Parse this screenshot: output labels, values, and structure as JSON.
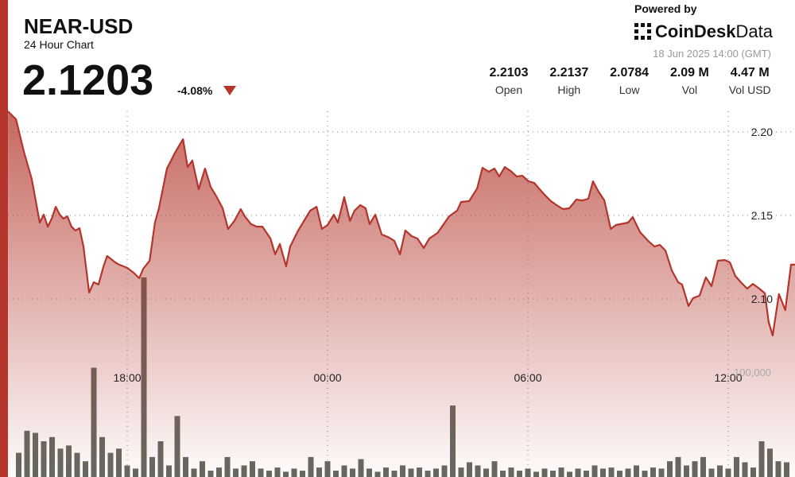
{
  "header": {
    "symbol": "NEAR-USD",
    "subtitle": "24 Hour Chart",
    "price": "2.1203",
    "change": "-4.08%",
    "powered_by": "Powered by",
    "brand": "CoinDesk",
    "brand_suffix": "Data",
    "timestamp": "18 Jun 2025 14:00 (GMT)",
    "stats": [
      {
        "value": "2.2103",
        "label": "Open"
      },
      {
        "value": "2.2137",
        "label": "High"
      },
      {
        "value": "2.0784",
        "label": "Low"
      },
      {
        "value": "2.09 M",
        "label": "Vol"
      },
      {
        "value": "4.47 M",
        "label": "Vol USD"
      }
    ]
  },
  "chart_data": {
    "type": "line",
    "x": [
      0.43,
      0.67,
      0.9,
      1.14,
      1.38,
      1.5,
      1.62,
      1.74,
      1.86,
      1.98,
      2.09,
      2.21,
      2.33,
      2.45,
      2.57,
      2.69,
      2.86,
      3.0,
      3.14,
      3.29,
      3.4,
      3.64,
      3.76,
      4.0,
      4.19,
      4.36,
      4.48,
      4.67,
      4.83,
      4.95,
      5.19,
      5.43,
      5.67,
      5.81,
      5.95,
      6.14,
      6.33,
      6.5,
      6.67,
      6.86,
      7.02,
      7.21,
      7.4,
      7.52,
      7.71,
      7.88,
      8.05,
      8.29,
      8.43,
      8.57,
      8.76,
      8.88,
      9.12,
      9.48,
      9.67,
      9.83,
      10.0,
      10.19,
      10.31,
      10.5,
      10.67,
      10.81,
      10.98,
      11.14,
      11.26,
      11.43,
      11.62,
      11.81,
      12.0,
      12.17,
      12.33,
      12.52,
      12.69,
      12.88,
      13.05,
      13.29,
      13.48,
      13.64,
      13.88,
      14.0,
      14.24,
      14.48,
      14.64,
      14.83,
      15.0,
      15.14,
      15.31,
      15.48,
      15.67,
      15.83,
      16.02,
      16.19,
      16.33,
      16.5,
      16.69,
      16.86,
      17.05,
      17.24,
      17.45,
      17.64,
      17.81,
      17.95,
      18.1,
      18.29,
      18.48,
      18.64,
      19.0,
      19.14,
      19.36,
      19.6,
      19.79,
      19.95,
      20.12,
      20.31,
      20.5,
      20.62,
      20.81,
      20.95,
      21.14,
      21.33,
      21.5,
      21.69,
      21.9,
      22.05,
      22.21,
      22.4,
      22.57,
      22.74,
      22.93,
      23.1,
      23.21,
      23.33,
      23.52,
      23.71,
      23.88,
      24.0
    ],
    "series": [
      {
        "color": "#b3352b",
        "values": [
          2.2124,
          2.2076,
          2.1886,
          2.1719,
          2.1457,
          2.1505,
          2.1433,
          2.1481,
          2.1552,
          2.1505,
          2.1481,
          2.1495,
          2.1433,
          2.141,
          2.1424,
          2.1314,
          2.1038,
          2.11,
          2.1086,
          2.1195,
          2.1257,
          2.1219,
          2.1205,
          2.1186,
          2.1157,
          2.1124,
          2.1181,
          2.1229,
          2.1457,
          2.1543,
          2.1781,
          2.1876,
          2.1957,
          2.179,
          2.1829,
          2.1657,
          2.1781,
          2.1671,
          2.1614,
          2.1543,
          2.1419,
          2.1467,
          2.1538,
          2.1495,
          2.1448,
          2.1433,
          2.1433,
          2.1362,
          2.1267,
          2.1329,
          2.1195,
          2.1314,
          2.141,
          2.1529,
          2.1552,
          2.1419,
          2.1443,
          2.1505,
          2.1457,
          2.161,
          2.1467,
          2.1529,
          2.1562,
          2.1543,
          2.1448,
          2.1505,
          2.1386,
          2.1371,
          2.1348,
          2.1267,
          2.141,
          2.1376,
          2.1362,
          2.1305,
          2.1362,
          2.1395,
          2.1448,
          2.1495,
          2.1529,
          2.1581,
          2.1586,
          2.1662,
          2.1786,
          2.1762,
          2.1781,
          2.1733,
          2.179,
          2.1767,
          2.1733,
          2.1738,
          2.1705,
          2.1695,
          2.1662,
          2.1624,
          2.1586,
          2.1562,
          2.1538,
          2.1543,
          2.1595,
          2.159,
          2.16,
          2.1705,
          2.1648,
          2.159,
          2.1419,
          2.1443,
          2.1457,
          2.149,
          2.14,
          2.1348,
          2.1314,
          2.1324,
          2.129,
          2.1171,
          2.11,
          2.1086,
          2.0957,
          2.1005,
          2.1019,
          2.1129,
          2.1076,
          2.1229,
          2.1233,
          2.1219,
          2.1138,
          2.1095,
          2.1062,
          2.109,
          2.1062,
          2.1033,
          2.0862,
          2.0781,
          2.1029,
          2.0933,
          2.1205,
          2.1205
        ]
      },
      {
        "type": "bar",
        "axis": "y2",
        "color": "#5c6159",
        "x": [
          0.75,
          1.0,
          1.25,
          1.5,
          1.75,
          2.0,
          2.25,
          2.5,
          2.75,
          3.0,
          3.25,
          3.5,
          3.75,
          4.0,
          4.25,
          4.5,
          4.75,
          5.0,
          5.25,
          5.5,
          5.75,
          6.0,
          6.25,
          6.5,
          6.75,
          7.0,
          7.25,
          7.5,
          7.75,
          8.0,
          8.25,
          8.5,
          8.75,
          9.0,
          9.25,
          9.5,
          9.75,
          10.0,
          10.25,
          10.5,
          10.75,
          11.0,
          11.25,
          11.5,
          11.75,
          12.0,
          12.25,
          12.5,
          12.75,
          13.0,
          13.25,
          13.5,
          13.75,
          14.0,
          14.25,
          14.5,
          14.75,
          15.0,
          15.25,
          15.5,
          15.75,
          16.0,
          16.25,
          16.5,
          16.75,
          17.0,
          17.25,
          17.5,
          17.75,
          18.0,
          18.25,
          18.5,
          18.75,
          19.0,
          19.25,
          19.5,
          19.75,
          20.0,
          20.25,
          20.5,
          20.75,
          21.0,
          21.25,
          21.5,
          21.75,
          22.0,
          22.25,
          22.5,
          22.75,
          23.0,
          23.25,
          23.5,
          23.75
        ],
        "values": [
          23000,
          44000,
          42000,
          34000,
          38000,
          27000,
          30000,
          23000,
          15000,
          104000,
          38000,
          23000,
          27000,
          11000,
          8000,
          190000,
          19000,
          34000,
          11000,
          58000,
          19000,
          8000,
          15000,
          6000,
          9000,
          19000,
          8000,
          11000,
          15000,
          8000,
          6000,
          9000,
          5000,
          8000,
          6000,
          19000,
          9000,
          15000,
          6000,
          11000,
          8000,
          17000,
          8000,
          5000,
          9000,
          6000,
          11000,
          8000,
          9000,
          6000,
          8000,
          11000,
          68000,
          9000,
          14000,
          11000,
          8000,
          15000,
          6000,
          9000,
          6000,
          8000,
          5000,
          8000,
          6000,
          9000,
          5000,
          8000,
          6000,
          11000,
          8000,
          9000,
          6000,
          8000,
          11000,
          6000,
          9000,
          8000,
          15000,
          19000,
          11000,
          15000,
          19000,
          8000,
          11000,
          8000,
          19000,
          14000,
          9000,
          34000,
          27000,
          15000,
          14000
        ]
      }
    ],
    "xlim": [
      0.19,
      24
    ],
    "xticks": [
      {
        "value": 4,
        "label": "18:00"
      },
      {
        "value": 10,
        "label": "00:00"
      },
      {
        "value": 16,
        "label": "06:00"
      },
      {
        "value": 22,
        "label": "12:00"
      }
    ],
    "ylim": [
      1.9933,
      2.2124
    ],
    "yticks": [
      {
        "value": 2.1,
        "label": "2.10"
      },
      2.15,
      {
        "value": 2.2,
        "label": "2.20"
      }
    ],
    "y2lim": [
      0,
      348000
    ],
    "y2ticks": [
      {
        "value": 100000,
        "label": "100,000"
      }
    ],
    "grid": true
  }
}
